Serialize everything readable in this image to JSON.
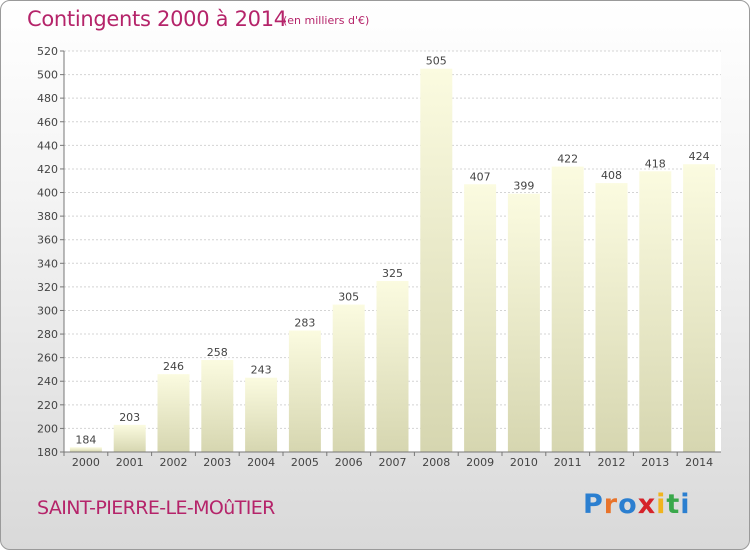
{
  "header": {
    "title": "Contingents 2000 à 2014",
    "subtitle": "(en milliers d'€)"
  },
  "footer": {
    "commune": "SAINT-PIERRE-LE-MOûTIER",
    "logo_letters": [
      "P",
      "r",
      "o",
      "x",
      "i",
      "t",
      "i"
    ],
    "logo_colors": [
      "#2b7fd0",
      "#e8732a",
      "#2b7fd0",
      "#d6232a",
      "#f0b41e",
      "#3aa84b",
      "#2b7fd0"
    ]
  },
  "colors": {
    "accent": "#b5246a",
    "bar_top": "#fbfbe0",
    "bar_bottom": "#d6d6b0"
  },
  "chart_data": {
    "type": "bar",
    "categories": [
      "2000",
      "2001",
      "2002",
      "2003",
      "2004",
      "2005",
      "2006",
      "2007",
      "2008",
      "2009",
      "2010",
      "2011",
      "2012",
      "2013",
      "2014"
    ],
    "values": [
      184,
      203,
      246,
      258,
      243,
      283,
      305,
      325,
      505,
      407,
      399,
      422,
      408,
      418,
      424
    ],
    "value_labels": [
      "184",
      "203",
      "246",
      "258",
      "243",
      "283",
      "305",
      "325",
      "505",
      "407",
      "399",
      "422",
      "408",
      "418",
      "424"
    ],
    "y_ticks": [
      "180",
      "200",
      "220",
      "240",
      "260",
      "280",
      "300",
      "320",
      "340",
      "360",
      "380",
      "400",
      "420",
      "440",
      "460",
      "480",
      "500",
      "520"
    ],
    "title": "Contingents 2000 à 2014",
    "xlabel": "",
    "ylabel": "",
    "ylim": [
      180,
      520
    ],
    "grid": true,
    "legend": "none"
  }
}
